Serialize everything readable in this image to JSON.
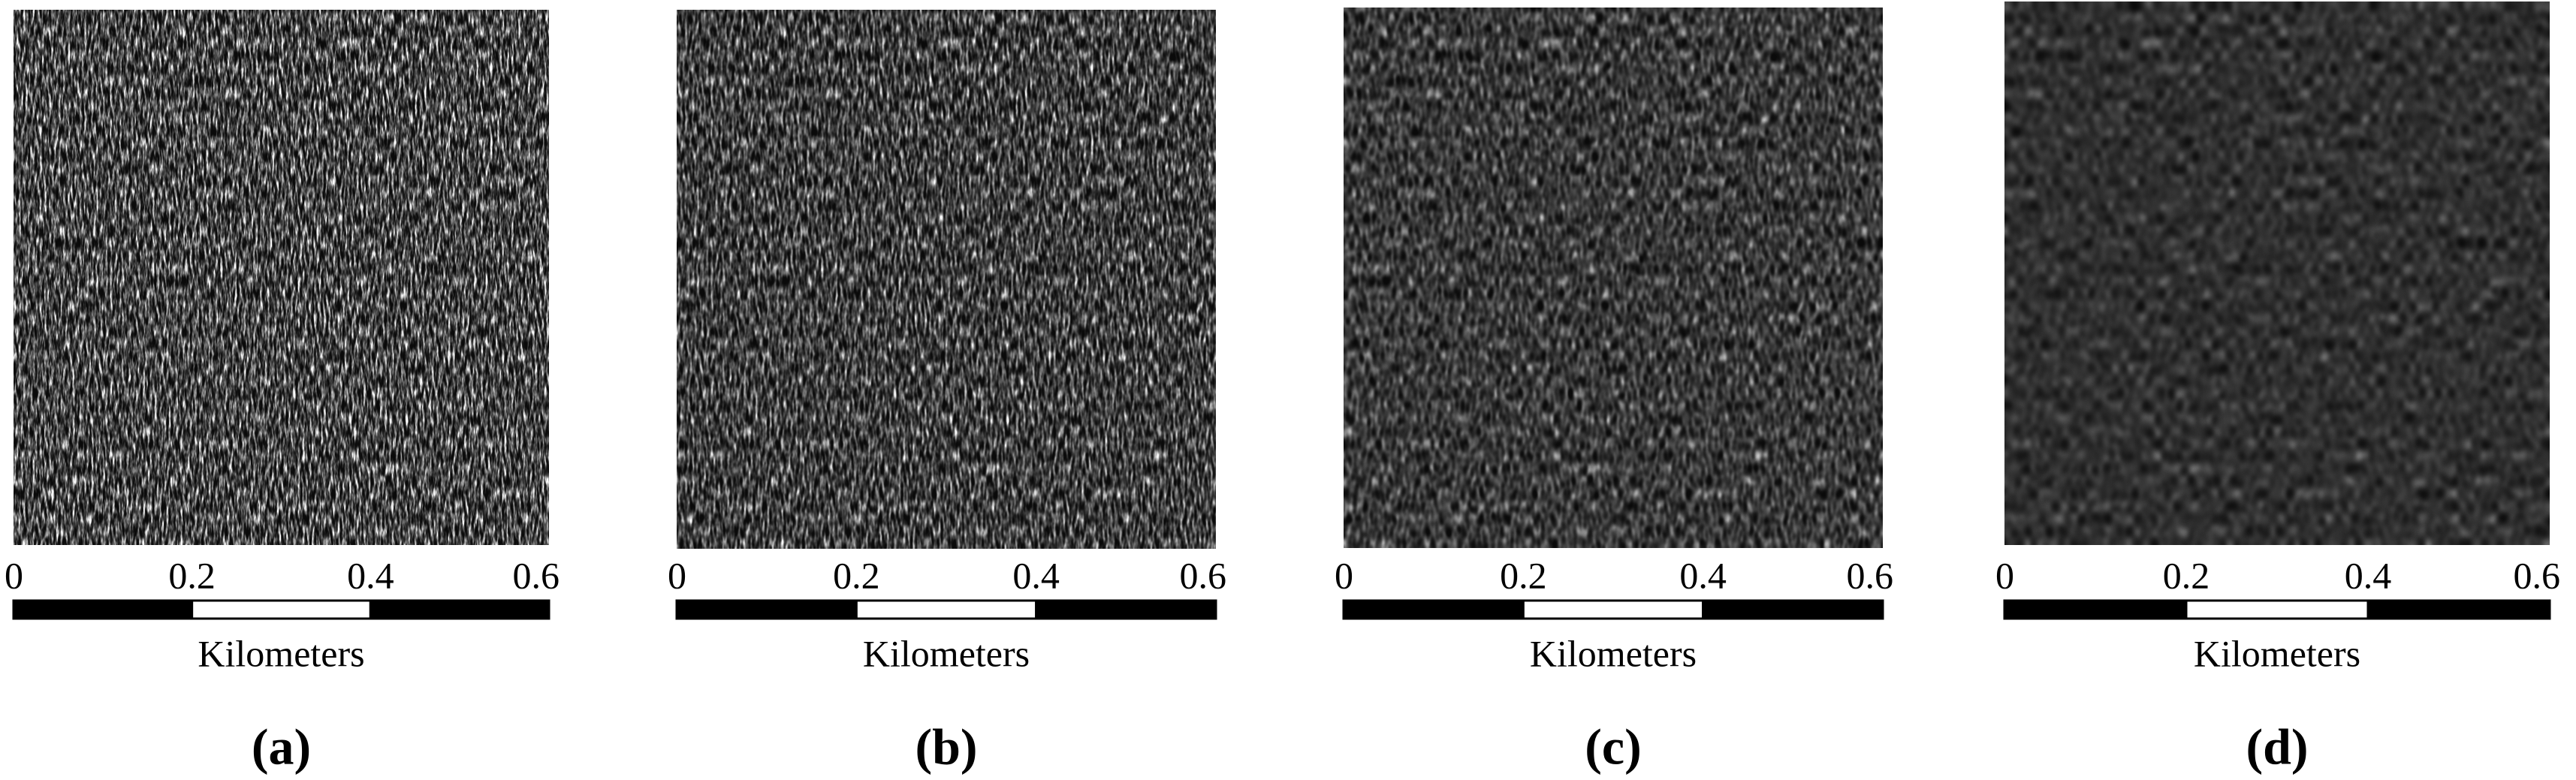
{
  "panels": [
    {
      "label": "(a)",
      "scale_ticks": [
        0,
        0.2,
        0.4,
        0.6
      ],
      "unit": "Kilometers"
    },
    {
      "label": "(b)",
      "scale_ticks": [
        0,
        0.2,
        0.4,
        0.6
      ],
      "unit": "Kilometers"
    },
    {
      "label": "(c)",
      "scale_ticks": [
        0,
        0.2,
        0.4,
        0.6
      ],
      "unit": "Kilometers"
    },
    {
      "label": "(d)",
      "scale_ticks": [
        0,
        0.2,
        0.4,
        0.6
      ],
      "unit": "Kilometers"
    }
  ]
}
